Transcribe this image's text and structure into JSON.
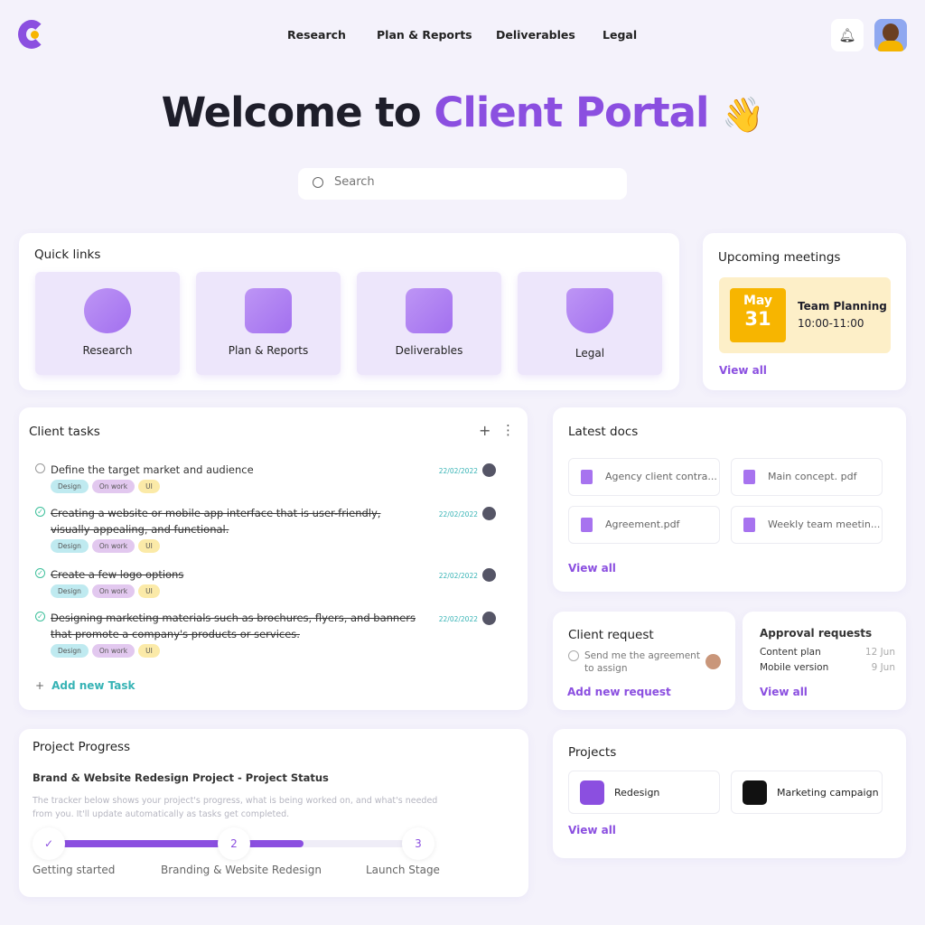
{
  "nav": {
    "items": [
      "Research",
      "Plan & Reports",
      "Deliverables",
      "Legal"
    ]
  },
  "hero": {
    "title_a": "Welcome to ",
    "title_b": "Client Portal",
    "emoji": "👋"
  },
  "search": {
    "placeholder": "Search"
  },
  "quick_links": {
    "title": "Quick links",
    "items": [
      "Research",
      "Plan & Reports",
      "Deliverables",
      "Legal"
    ]
  },
  "meetings": {
    "title": "Upcoming meetings",
    "month": "May",
    "day": "31",
    "name": "Team Planning",
    "time": "10:00-11:00",
    "view_all": "View all"
  },
  "tasks": {
    "title": "Client tasks",
    "add": "Add new Task",
    "items": [
      {
        "text": "Define the target market and audience",
        "done": false,
        "date": "22/02/2022",
        "tags": [
          "Design",
          "On work",
          "UI"
        ]
      },
      {
        "text": "Creating a website or mobile app interface that is user-friendly, visually appealing, and functional.",
        "done": true,
        "date": "22/02/2022",
        "tags": [
          "Design",
          "On work",
          "UI"
        ]
      },
      {
        "text": "Create a few logo options",
        "done": true,
        "date": "22/02/2022",
        "tags": [
          "Design",
          "On work",
          "UI"
        ]
      },
      {
        "text": "Designing marketing materials such as brochures, flyers, and banners that promote a company's products or services.",
        "done": true,
        "date": "22/02/2022",
        "tags": [
          "Design",
          "On work",
          "UI"
        ]
      }
    ]
  },
  "docs": {
    "title": "Latest docs",
    "items": [
      "Agency client contra...",
      "Main concept. pdf",
      "Agreement.pdf",
      "Weekly team meetin..."
    ],
    "view_all": "View all"
  },
  "client_request": {
    "title": "Client request",
    "item": "Send me the agreement to assign",
    "add": "Add new request"
  },
  "approval": {
    "title": "Approval requests",
    "items": [
      {
        "name": "Content plan",
        "date": "12 Jun"
      },
      {
        "name": "Mobile version",
        "date": "9 Jun"
      }
    ],
    "view_all": "View all"
  },
  "progress": {
    "title": "Project Progress",
    "subtitle": "Brand & Website Redesign Project - Project Status",
    "desc": "The tracker below shows your project's progress, what is being worked on, and what's needed from you. It'll update automatically as tasks get completed.",
    "steps": [
      "Getting started",
      "Branding & Website Redesign",
      "Launch Stage"
    ],
    "step2": "2",
    "step3": "3",
    "current_step": 2,
    "segment2_fill_percent": 40
  },
  "projects": {
    "title": "Projects",
    "items": [
      "Redesign",
      "Marketing campaign"
    ],
    "view_all": "View all"
  },
  "colors": {
    "accent": "#8b4fe0",
    "teal": "#36b3b5",
    "meeting_bg": "#fdefc8",
    "date_badge": "#f7b500"
  }
}
